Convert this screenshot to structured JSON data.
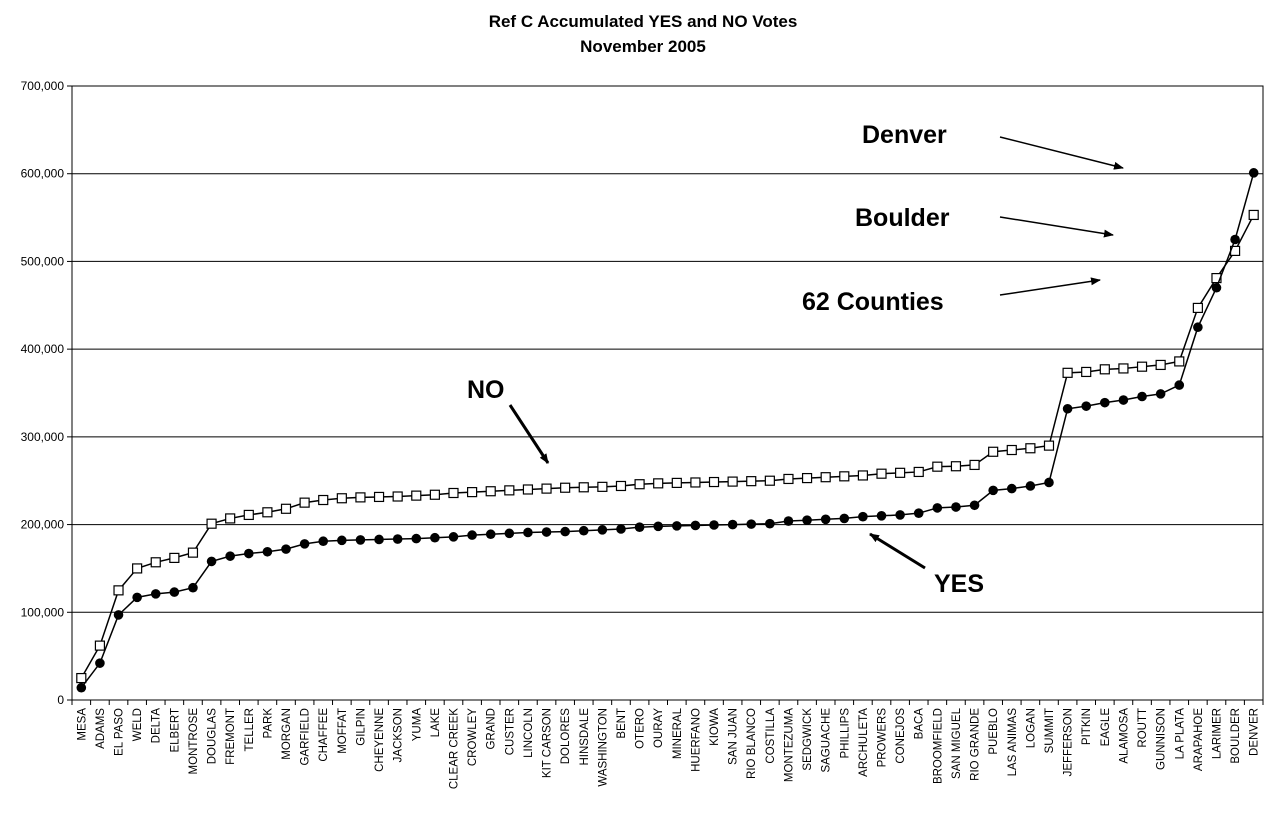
{
  "chart_data": {
    "type": "line",
    "title": "Ref C Accumulated YES and NO Votes",
    "subtitle": "November 2005",
    "xlabel": "",
    "ylabel": "",
    "ylim": [
      0,
      700000
    ],
    "y_ticks": [
      "0",
      "100,000",
      "200,000",
      "300,000",
      "400,000",
      "500,000",
      "600,000",
      "700,000"
    ],
    "grid": true,
    "legend": "none",
    "categories": [
      "MESA",
      "ADAMS",
      "EL PASO",
      "WELD",
      "DELTA",
      "ELBERT",
      "MONTROSE",
      "DOUGLAS",
      "FREMONT",
      "TELLER",
      "PARK",
      "MORGAN",
      "GARFIELD",
      "CHAFFEE",
      "MOFFAT",
      "GILPIN",
      "CHEYENNE",
      "JACKSON",
      "YUMA",
      "LAKE",
      "CLEAR CREEK",
      "CROWLEY",
      "GRAND",
      "CUSTER",
      "LINCOLN",
      "KIT CARSON",
      "DOLORES",
      "HINSDALE",
      "WASHINGTON",
      "BENT",
      "OTERO",
      "OURAY",
      "MINERAL",
      "HUERFANO",
      "KIOWA",
      "SAN JUAN",
      "RIO BLANCO",
      "COSTILLA",
      "MONTEZUMA",
      "SEDGWICK",
      "SAGUACHE",
      "PHILLIPS",
      "ARCHULETA",
      "PROWERS",
      "CONEJOS",
      "BACA",
      "BROOMFIELD",
      "SAN MIGUEL",
      "RIO GRANDE",
      "PUEBLO",
      "LAS ANIMAS",
      "LOGAN",
      "SUMMIT",
      "JEFFERSON",
      "PITKIN",
      "EAGLE",
      "ALAMOSA",
      "ROUTT",
      "GUNNISON",
      "LA PLATA",
      "ARAPAHOE",
      "LARIMER",
      "BOULDER",
      "DENVER"
    ],
    "series": [
      {
        "name": "NO",
        "marker": "open-square",
        "color": "#000000",
        "values": [
          25000,
          62000,
          125000,
          150000,
          157000,
          162000,
          168000,
          201000,
          207000,
          211000,
          214000,
          218000,
          225000,
          228000,
          230000,
          231000,
          231500,
          232000,
          233000,
          234000,
          236000,
          237000,
          238000,
          239000,
          240000,
          241000,
          242000,
          242500,
          243000,
          244000,
          246000,
          247000,
          247500,
          248000,
          248500,
          249000,
          249500,
          250000,
          252000,
          253000,
          254000,
          255000,
          256000,
          258000,
          259000,
          260000,
          266000,
          266500,
          268000,
          283000,
          285000,
          287000,
          290000,
          373000,
          374000,
          377000,
          378000,
          380000,
          382000,
          386000,
          447000,
          481000,
          512000,
          553000
        ]
      },
      {
        "name": "YES",
        "marker": "filled-circle",
        "color": "#000000",
        "values": [
          14000,
          42000,
          97000,
          117000,
          121000,
          123000,
          128000,
          158000,
          164000,
          167000,
          169000,
          172000,
          178000,
          181000,
          182000,
          182500,
          183000,
          183500,
          184000,
          185000,
          186000,
          188000,
          189000,
          190000,
          191000,
          191500,
          192000,
          193000,
          194000,
          195000,
          197000,
          198000,
          198500,
          199000,
          199500,
          200000,
          200500,
          201000,
          204000,
          205000,
          206000,
          207000,
          209000,
          210000,
          211000,
          213000,
          219000,
          220000,
          222000,
          239000,
          241000,
          244000,
          248000,
          332000,
          335000,
          339000,
          342000,
          346000,
          349000,
          359000,
          425000,
          470000,
          525000,
          601000
        ]
      }
    ],
    "annotations": [
      {
        "text": "NO",
        "points_to": "NO"
      },
      {
        "text": "YES",
        "points_to": "YES"
      },
      {
        "text": "Denver",
        "points_to": "DENVER"
      },
      {
        "text": "Boulder",
        "points_to": "BOULDER"
      },
      {
        "text": "62 Counties",
        "points_to": "ARAPAHOE"
      }
    ]
  }
}
